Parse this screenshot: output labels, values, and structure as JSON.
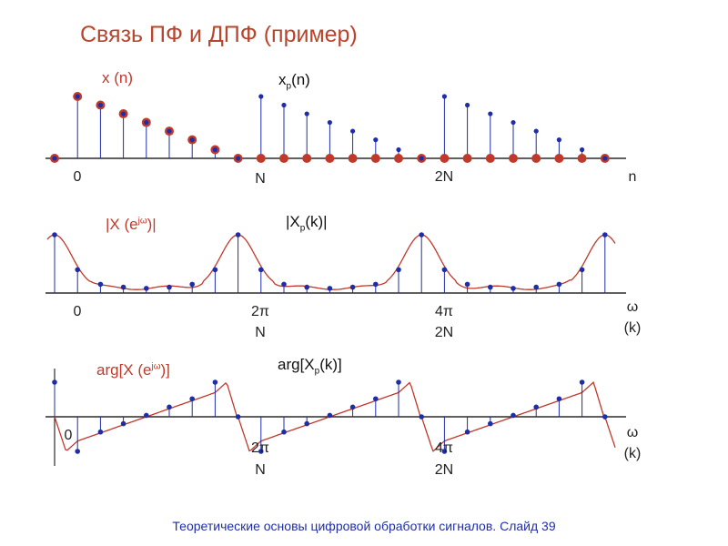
{
  "title": "Связь ПФ и ДПФ (пример)",
  "footer": {
    "text": "Теоретические основы цифровой обработки сигналов.",
    "slide": "Слайд",
    "slide_no": "39"
  },
  "panel1": {
    "label_x": "x (n)",
    "label_xp_main": "x",
    "label_xp_sub": "p",
    "label_xp_arg": "(n)",
    "ticks": [
      "0",
      "N",
      "2N"
    ],
    "axis_label": "n"
  },
  "panel2": {
    "label_X_pre": "|X (e",
    "label_X_sup": "jω",
    "label_X_post": ")|",
    "label_Xp_pre": "|X",
    "label_Xp_sub": "p",
    "label_Xp_post": "(k)|",
    "ticks_top": [
      "0",
      "2π",
      "4π"
    ],
    "ticks_bottom": [
      "N",
      "2N"
    ],
    "axis_label_top": "ω",
    "axis_label_bottom": "(k)"
  },
  "panel3": {
    "label_arg_pre": "arg[X (e",
    "label_arg_sup": "jω",
    "label_arg_post": ")]",
    "label_argp_pre": "arg[X",
    "label_argp_sub": "p",
    "label_argp_post": "(k)]",
    "tick_zero": "0",
    "ticks_top": [
      "2π",
      "4π"
    ],
    "ticks_bottom": [
      "N",
      "2N"
    ],
    "axis_label_top": "ω",
    "axis_label_bottom": "(k)"
  },
  "colors": {
    "red": "#c0392b",
    "blue": "#1f2ea8",
    "stem": "#1f2ea8",
    "axis": "#000000",
    "curve": "#c0392b"
  },
  "sequence": {
    "x": [
      0.0,
      1.0,
      0.86,
      0.72,
      0.58,
      0.44,
      0.3,
      0.14,
      0.0,
      0,
      0,
      0,
      0,
      0,
      0,
      0,
      0,
      0,
      0,
      0,
      0,
      0,
      0,
      0,
      0
    ],
    "xp_period": [
      0.0,
      1.0,
      0.86,
      0.72,
      0.58,
      0.44,
      0.3,
      0.14
    ]
  }
}
